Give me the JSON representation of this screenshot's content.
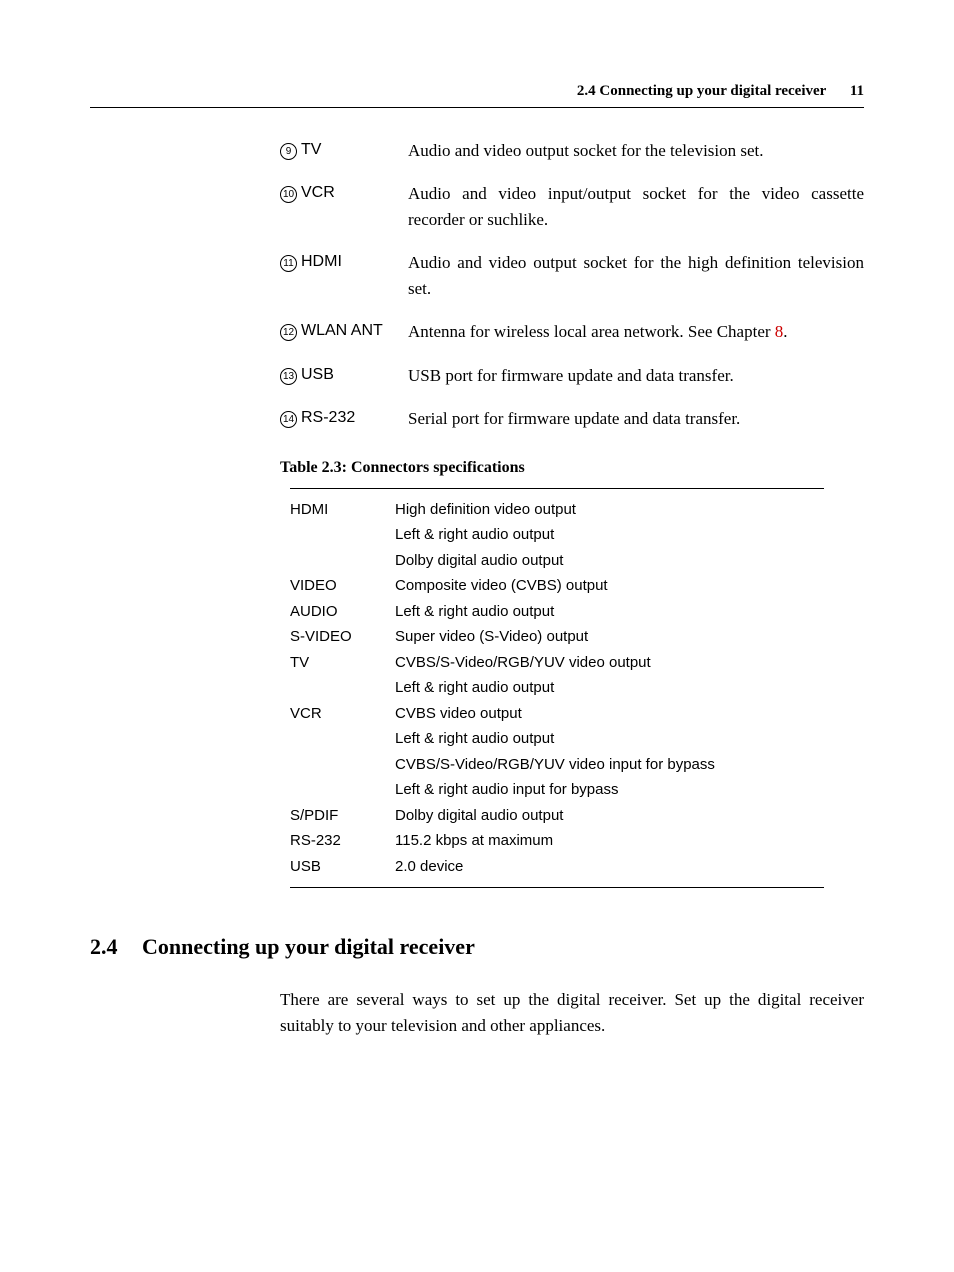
{
  "header": {
    "section_label": "2.4 Connecting up your digital receiver",
    "page_number": "11"
  },
  "definitions": [
    {
      "num": "9",
      "term": "TV",
      "desc": "Audio and video output socket for the television set."
    },
    {
      "num": "10",
      "term": "VCR",
      "desc": "Audio and video input/output socket for the video cassette recorder or suchlike."
    },
    {
      "num": "11",
      "term": "HDMI",
      "desc": "Audio and video output socket for the high definition television set."
    },
    {
      "num": "12",
      "term": "WLAN ANT",
      "desc_pre": "Antenna for wireless local area network. See Chapter ",
      "link": "8",
      "desc_post": "."
    },
    {
      "num": "13",
      "term": "USB",
      "desc": "USB port for firmware update and data transfer."
    },
    {
      "num": "14",
      "term": "RS-232",
      "desc": "Serial port for firmware update and data transfer."
    }
  ],
  "table": {
    "caption": "Table 2.3: Connectors specifications",
    "rows": [
      {
        "label": "HDMI",
        "value": "High definition video output"
      },
      {
        "label": "",
        "value": "Left & right audio output"
      },
      {
        "label": "",
        "value": "Dolby digital audio output"
      },
      {
        "label": "VIDEO",
        "value": "Composite video (CVBS) output"
      },
      {
        "label": "AUDIO",
        "value": "Left & right audio output"
      },
      {
        "label": "S-VIDEO",
        "value": "Super video (S-Video) output"
      },
      {
        "label": "TV",
        "value": "CVBS/S-Video/RGB/YUV video output"
      },
      {
        "label": "",
        "value": "Left & right audio output"
      },
      {
        "label": "VCR",
        "value": "CVBS video output"
      },
      {
        "label": "",
        "value": "Left & right audio output"
      },
      {
        "label": "",
        "value": "CVBS/S-Video/RGB/YUV video input for bypass"
      },
      {
        "label": "",
        "value": "Left & right audio input for bypass"
      },
      {
        "label": "S/PDIF",
        "value": "Dolby digital audio output"
      },
      {
        "label": "RS-232",
        "value": "115.2 kbps at maximum"
      },
      {
        "label": "USB",
        "value": "2.0 device"
      }
    ]
  },
  "section": {
    "number": "2.4",
    "title": "Connecting up your digital receiver",
    "paragraph": "There are several ways to set up the digital receiver. Set up the digital receiver suitably to your television and other appliances."
  }
}
